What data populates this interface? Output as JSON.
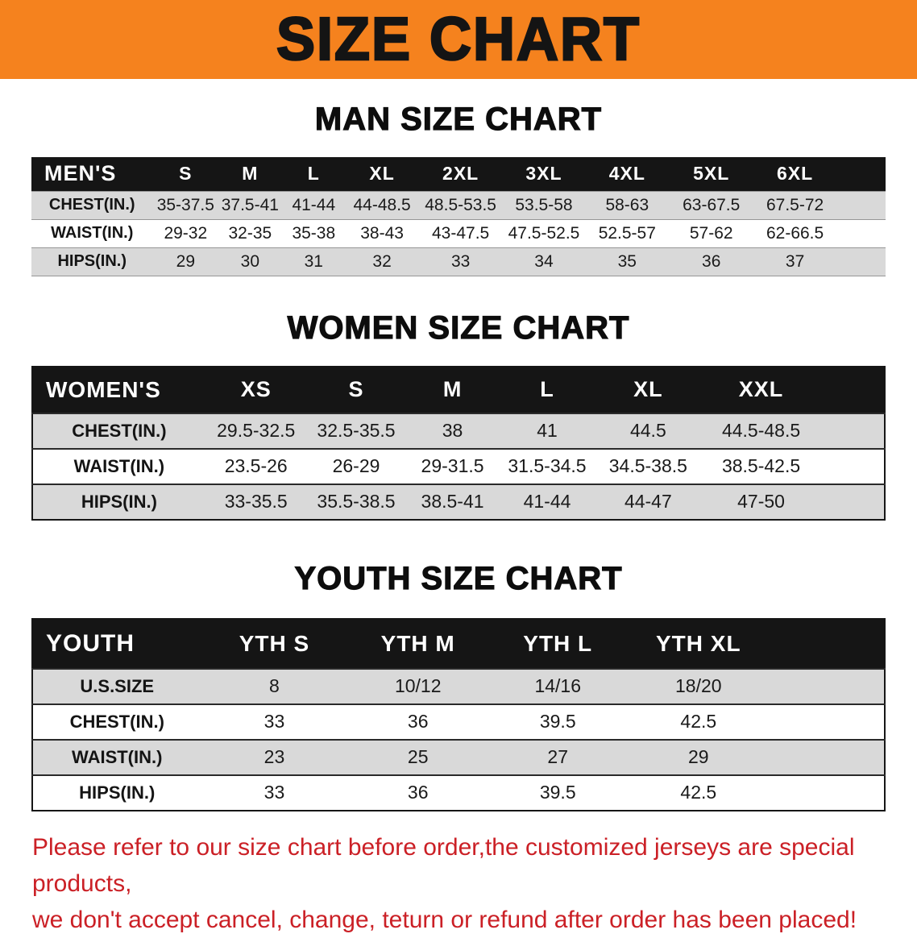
{
  "banner": {
    "title": "SIZE CHART"
  },
  "colors": {
    "banner_bg": "#F5821E",
    "table_header_bg": "#151515",
    "stripe_gray": "#D9D9D9",
    "disclaimer_red": "#CB2026"
  },
  "chart_data": [
    {
      "type": "table",
      "title": "MAN SIZE CHART",
      "header": [
        "MEN'S",
        "S",
        "M",
        "L",
        "XL",
        "2XL",
        "3XL",
        "4XL",
        "5XL",
        "6XL"
      ],
      "rows": [
        [
          "CHEST(IN.)",
          "35-37.5",
          "37.5-41",
          "41-44",
          "44-48.5",
          "48.5-53.5",
          "53.5-58",
          "58-63",
          "63-67.5",
          "67.5-72"
        ],
        [
          "WAIST(IN.)",
          "29-32",
          "32-35",
          "35-38",
          "38-43",
          "43-47.5",
          "47.5-52.5",
          "52.5-57",
          "57-62",
          "62-66.5"
        ],
        [
          "HIPS(IN.)",
          "29",
          "30",
          "31",
          "32",
          "33",
          "34",
          "35",
          "36",
          "37"
        ]
      ]
    },
    {
      "type": "table",
      "title": "WOMEN SIZE CHART",
      "header": [
        "WOMEN'S",
        "XS",
        "S",
        "M",
        "L",
        "XL",
        "XXL"
      ],
      "rows": [
        [
          "CHEST(IN.)",
          "29.5-32.5",
          "32.5-35.5",
          "38",
          "41",
          "44.5",
          "44.5-48.5"
        ],
        [
          "WAIST(IN.)",
          "23.5-26",
          "26-29",
          "29-31.5",
          "31.5-34.5",
          "34.5-38.5",
          "38.5-42.5"
        ],
        [
          "HIPS(IN.)",
          "33-35.5",
          "35.5-38.5",
          "38.5-41",
          "41-44",
          "44-47",
          "47-50"
        ]
      ]
    },
    {
      "type": "table",
      "title": "YOUTH SIZE CHART",
      "header": [
        "YOUTH",
        "YTH S",
        "YTH M",
        "YTH L",
        "YTH XL"
      ],
      "rows": [
        [
          "U.S.SIZE",
          "8",
          "10/12",
          "14/16",
          "18/20"
        ],
        [
          "CHEST(IN.)",
          "33",
          "36",
          "39.5",
          "42.5"
        ],
        [
          "WAIST(IN.)",
          "23",
          "25",
          "27",
          "29"
        ],
        [
          "HIPS(IN.)",
          "33",
          "36",
          "39.5",
          "42.5"
        ]
      ]
    }
  ],
  "disclaimer": {
    "lines": [
      "Please refer to our size chart before order,the customized jerseys are special products,",
      "we don't accept cancel, change, teturn or refund after order has been placed!"
    ]
  }
}
